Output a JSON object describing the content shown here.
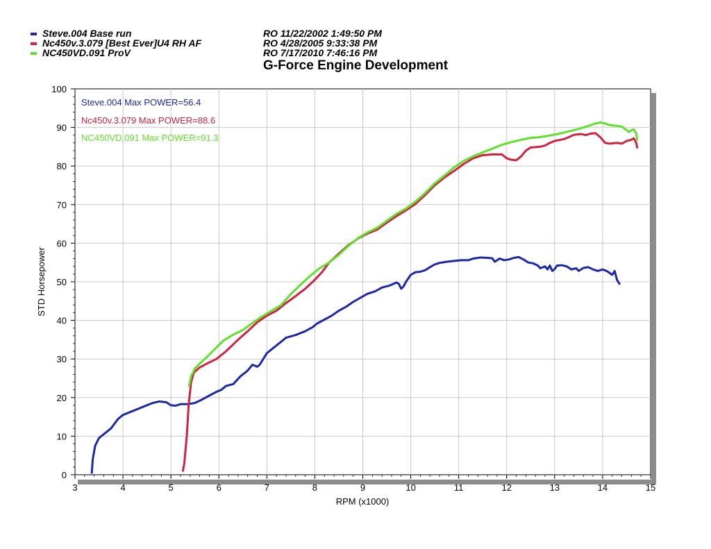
{
  "legend": [
    {
      "name": "Steve.004  Base run",
      "date": "RO  11/22/2002 1:49:50 PM",
      "color": "#1c27a8"
    },
    {
      "name": "Nc450v.3.079  [Best Ever]U4 RH AF",
      "date": "RO  4/28/2005 9:33:38 PM",
      "color": "#d0213f"
    },
    {
      "name": "NC450VD.091  ProV",
      "date": "RO  7/17/2010 7:46:16 PM",
      "color": "#5ee12a"
    }
  ],
  "chart_data": {
    "type": "line",
    "title": "G-Force Engine Development",
    "xlabel": "RPM (x1000)",
    "ylabel": "STD Horsepower",
    "xlim": [
      3,
      15
    ],
    "ylim": [
      0,
      100
    ],
    "x_ticks": [
      "3",
      "4",
      "5",
      "6",
      "7",
      "8",
      "9",
      "10",
      "11",
      "12",
      "13",
      "14",
      "15"
    ],
    "y_ticks": [
      "0",
      "10",
      "20",
      "30",
      "40",
      "50",
      "60",
      "70",
      "80",
      "90",
      "100"
    ],
    "grid": true,
    "annotations": [
      "Steve.004  Max POWER=56.4",
      "Nc450v.3.079  Max POWER=88.6",
      "NC450VD.091  Max POWER=91.3"
    ],
    "series": [
      {
        "name": "Steve.004",
        "color": "#1c27a8",
        "points": [
          [
            3.35,
            0.5
          ],
          [
            3.37,
            4
          ],
          [
            3.42,
            7.5
          ],
          [
            3.5,
            9.5
          ],
          [
            3.6,
            10.5
          ],
          [
            3.75,
            12
          ],
          [
            3.9,
            14.5
          ],
          [
            4.0,
            15.5
          ],
          [
            4.2,
            16.5
          ],
          [
            4.4,
            17.5
          ],
          [
            4.6,
            18.5
          ],
          [
            4.75,
            19
          ],
          [
            4.9,
            18.8
          ],
          [
            5.0,
            18
          ],
          [
            5.1,
            17.9
          ],
          [
            5.2,
            18.3
          ],
          [
            5.35,
            18.3
          ],
          [
            5.5,
            18.6
          ],
          [
            5.65,
            19.5
          ],
          [
            5.8,
            20.5
          ],
          [
            5.95,
            21.5
          ],
          [
            6.05,
            22
          ],
          [
            6.15,
            23
          ],
          [
            6.3,
            23.5
          ],
          [
            6.45,
            25.5
          ],
          [
            6.6,
            27
          ],
          [
            6.7,
            28.5
          ],
          [
            6.8,
            28
          ],
          [
            6.85,
            28.5
          ],
          [
            6.9,
            29.5
          ],
          [
            7.0,
            31.5
          ],
          [
            7.1,
            32.5
          ],
          [
            7.2,
            33.5
          ],
          [
            7.3,
            34.5
          ],
          [
            7.4,
            35.5
          ],
          [
            7.6,
            36.2
          ],
          [
            7.8,
            37.2
          ],
          [
            7.95,
            38.2
          ],
          [
            8.05,
            39.2
          ],
          [
            8.2,
            40.2
          ],
          [
            8.35,
            41.2
          ],
          [
            8.5,
            42.5
          ],
          [
            8.65,
            43.5
          ],
          [
            8.8,
            44.8
          ],
          [
            8.9,
            45.5
          ],
          [
            9.0,
            46.2
          ],
          [
            9.1,
            46.9
          ],
          [
            9.25,
            47.5
          ],
          [
            9.4,
            48.5
          ],
          [
            9.55,
            49
          ],
          [
            9.7,
            49.8
          ],
          [
            9.75,
            49.5
          ],
          [
            9.8,
            48.2
          ],
          [
            9.85,
            48.8
          ],
          [
            9.9,
            50
          ],
          [
            10.0,
            51.8
          ],
          [
            10.1,
            52.5
          ],
          [
            10.2,
            52.6
          ],
          [
            10.3,
            53
          ],
          [
            10.4,
            53.8
          ],
          [
            10.5,
            54.5
          ],
          [
            10.6,
            54.9
          ],
          [
            10.75,
            55.2
          ],
          [
            10.9,
            55.4
          ],
          [
            11.05,
            55.6
          ],
          [
            11.2,
            55.6
          ],
          [
            11.3,
            56
          ],
          [
            11.45,
            56.3
          ],
          [
            11.6,
            56.2
          ],
          [
            11.7,
            56.1
          ],
          [
            11.75,
            55.2
          ],
          [
            11.85,
            56
          ],
          [
            11.95,
            55.6
          ],
          [
            12.05,
            55.8
          ],
          [
            12.15,
            56.2
          ],
          [
            12.25,
            56.4
          ],
          [
            12.35,
            55.8
          ],
          [
            12.45,
            55
          ],
          [
            12.55,
            54.8
          ],
          [
            12.65,
            54.2
          ],
          [
            12.7,
            53.5
          ],
          [
            12.8,
            54
          ],
          [
            12.85,
            53.2
          ],
          [
            12.9,
            54.2
          ],
          [
            12.95,
            52.8
          ],
          [
            13.0,
            53.3
          ],
          [
            13.05,
            54.2
          ],
          [
            13.15,
            54.3
          ],
          [
            13.25,
            54
          ],
          [
            13.35,
            53.2
          ],
          [
            13.45,
            53.5
          ],
          [
            13.5,
            52.8
          ],
          [
            13.6,
            53.6
          ],
          [
            13.7,
            53.8
          ],
          [
            13.8,
            53.2
          ],
          [
            13.9,
            52.8
          ],
          [
            14.0,
            53.2
          ],
          [
            14.1,
            52.7
          ],
          [
            14.2,
            51.8
          ],
          [
            14.25,
            52.8
          ],
          [
            14.3,
            50.5
          ],
          [
            14.35,
            49.5
          ]
        ]
      },
      {
        "name": "Nc450v.3.079",
        "color": "#d0213f",
        "points": [
          [
            5.25,
            1
          ],
          [
            5.28,
            3
          ],
          [
            5.33,
            10
          ],
          [
            5.37,
            18
          ],
          [
            5.42,
            24
          ],
          [
            5.48,
            26.5
          ],
          [
            5.6,
            27.8
          ],
          [
            5.75,
            28.8
          ],
          [
            5.95,
            30
          ],
          [
            6.15,
            32
          ],
          [
            6.4,
            35
          ],
          [
            6.6,
            37.2
          ],
          [
            6.8,
            39.5
          ],
          [
            7.0,
            41.2
          ],
          [
            7.2,
            42.5
          ],
          [
            7.4,
            44.5
          ],
          [
            7.6,
            46.3
          ],
          [
            7.8,
            48.2
          ],
          [
            8.0,
            50.5
          ],
          [
            8.15,
            52.5
          ],
          [
            8.3,
            55
          ],
          [
            8.5,
            57.3
          ],
          [
            8.7,
            59.5
          ],
          [
            8.9,
            61.2
          ],
          [
            9.1,
            62.5
          ],
          [
            9.3,
            63.5
          ],
          [
            9.5,
            65.3
          ],
          [
            9.7,
            67
          ],
          [
            9.9,
            68.5
          ],
          [
            10.1,
            70.2
          ],
          [
            10.3,
            72.5
          ],
          [
            10.5,
            75
          ],
          [
            10.7,
            77
          ],
          [
            10.9,
            78.7
          ],
          [
            11.1,
            80.5
          ],
          [
            11.3,
            82
          ],
          [
            11.5,
            82.8
          ],
          [
            11.7,
            83
          ],
          [
            11.9,
            83
          ],
          [
            12.0,
            82
          ],
          [
            12.1,
            81.6
          ],
          [
            12.2,
            81.5
          ],
          [
            12.3,
            82.5
          ],
          [
            12.4,
            84
          ],
          [
            12.5,
            84.8
          ],
          [
            12.7,
            85
          ],
          [
            12.8,
            85.3
          ],
          [
            12.9,
            86
          ],
          [
            13.0,
            86.5
          ],
          [
            13.2,
            87
          ],
          [
            13.3,
            87.5
          ],
          [
            13.4,
            88.1
          ],
          [
            13.55,
            88.3
          ],
          [
            13.65,
            88
          ],
          [
            13.75,
            88.4
          ],
          [
            13.85,
            88.5
          ],
          [
            13.95,
            87.5
          ],
          [
            14.05,
            86
          ],
          [
            14.15,
            85.8
          ],
          [
            14.3,
            86
          ],
          [
            14.4,
            85.8
          ],
          [
            14.5,
            86.5
          ],
          [
            14.6,
            86.8
          ],
          [
            14.65,
            87.2
          ],
          [
            14.7,
            86
          ],
          [
            14.72,
            84.8
          ]
        ]
      },
      {
        "name": "NC450VD.091",
        "color": "#5ee12a",
        "points": [
          [
            5.38,
            23
          ],
          [
            5.42,
            25.5
          ],
          [
            5.5,
            27.5
          ],
          [
            5.6,
            28.8
          ],
          [
            5.75,
            30.5
          ],
          [
            5.95,
            33
          ],
          [
            6.1,
            34.8
          ],
          [
            6.3,
            36.3
          ],
          [
            6.5,
            37.5
          ],
          [
            6.7,
            39.3
          ],
          [
            6.9,
            41
          ],
          [
            7.1,
            42.5
          ],
          [
            7.3,
            44
          ],
          [
            7.5,
            46.8
          ],
          [
            7.7,
            49.2
          ],
          [
            7.9,
            51.5
          ],
          [
            8.1,
            53.5
          ],
          [
            8.3,
            55
          ],
          [
            8.5,
            57
          ],
          [
            8.7,
            59.3
          ],
          [
            8.9,
            61.3
          ],
          [
            9.1,
            62.8
          ],
          [
            9.3,
            64
          ],
          [
            9.5,
            65.8
          ],
          [
            9.7,
            67.6
          ],
          [
            9.9,
            69
          ],
          [
            10.1,
            70.8
          ],
          [
            10.3,
            73
          ],
          [
            10.5,
            75.5
          ],
          [
            10.7,
            77.5
          ],
          [
            10.9,
            79.6
          ],
          [
            11.1,
            81.3
          ],
          [
            11.3,
            82.5
          ],
          [
            11.5,
            83.5
          ],
          [
            11.7,
            84.5
          ],
          [
            11.9,
            85.5
          ],
          [
            12.1,
            86.2
          ],
          [
            12.3,
            86.8
          ],
          [
            12.5,
            87.3
          ],
          [
            12.7,
            87.5
          ],
          [
            12.9,
            87.9
          ],
          [
            13.1,
            88.4
          ],
          [
            13.3,
            89
          ],
          [
            13.5,
            89.6
          ],
          [
            13.7,
            90.4
          ],
          [
            13.85,
            91
          ],
          [
            13.95,
            91.3
          ],
          [
            14.05,
            91
          ],
          [
            14.15,
            90.6
          ],
          [
            14.3,
            90.4
          ],
          [
            14.4,
            90.2
          ],
          [
            14.5,
            89.3
          ],
          [
            14.55,
            88.8
          ],
          [
            14.6,
            89.3
          ],
          [
            14.65,
            89.5
          ],
          [
            14.7,
            88.5
          ],
          [
            14.72,
            86.8
          ]
        ]
      }
    ]
  }
}
